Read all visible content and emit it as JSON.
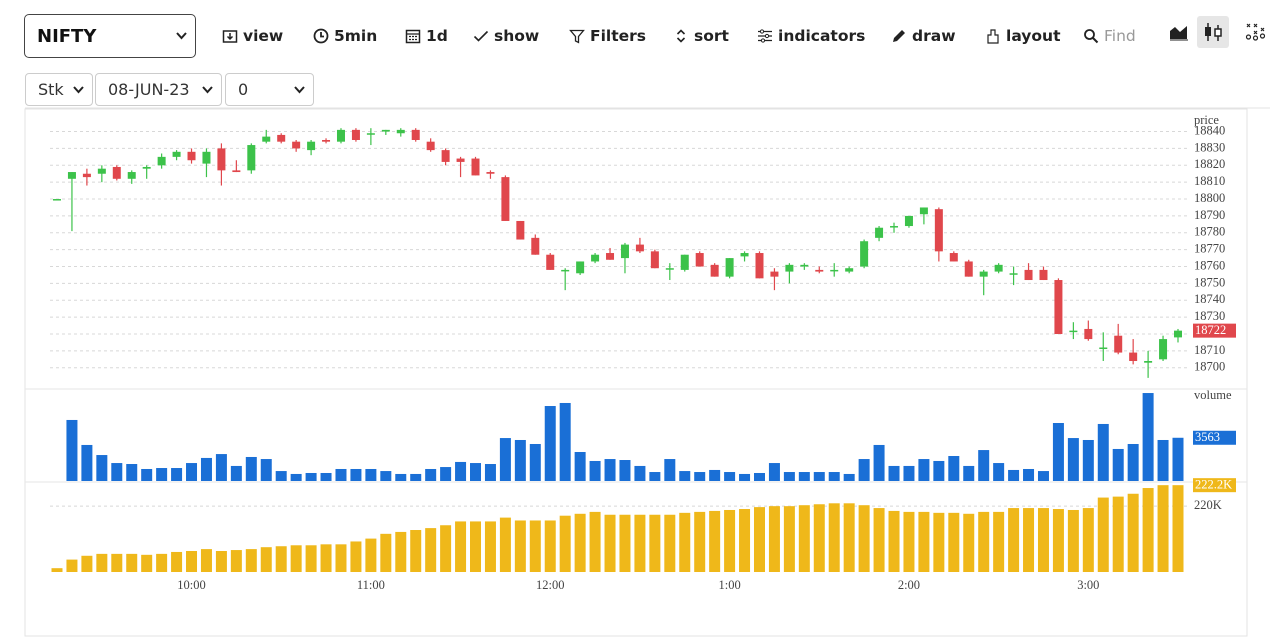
{
  "toolbar": {
    "symbol": "NIFTY",
    "buttons": [
      "view",
      "5min",
      "1d",
      "show",
      "Filters",
      "sort",
      "indicators",
      "draw",
      "layout"
    ],
    "search_placeholder": "Find"
  },
  "selectors": [
    "Stk",
    "08-JUN-23",
    "0"
  ],
  "chart_data": [
    {
      "type": "candlestick",
      "label": "price",
      "up_color": "#3cc24a",
      "down_color": "#e0474c",
      "badge_color": "#e0474c",
      "grid": true,
      "ylim": [
        18688,
        18851
      ],
      "yticks": [
        18700,
        18710,
        18720,
        18730,
        18740,
        18750,
        18760,
        18770,
        18780,
        18790,
        18800,
        18810,
        18820,
        18830,
        18840
      ],
      "open": [
        18800,
        18812,
        18815,
        18815,
        18819,
        18812,
        18818,
        18820,
        18825,
        18828,
        18821,
        18830,
        18817,
        18817,
        18834,
        18838,
        18834,
        18829,
        18835,
        18834,
        18841,
        18839,
        18840,
        18839,
        18841,
        18834,
        18829,
        18824,
        18824,
        18816,
        18813,
        18787,
        18777,
        18767,
        18758,
        18756,
        18763,
        18768,
        18765,
        18773,
        18769,
        18759,
        18758,
        18768,
        18761,
        18754,
        18766,
        18768,
        18757,
        18757,
        18760,
        18758,
        18758,
        18757,
        18760,
        18777,
        18784,
        18784,
        18791,
        18794,
        18768,
        18763,
        18754,
        18757,
        18756,
        18758,
        18758,
        18752,
        18722,
        18723,
        18712,
        18719,
        18709,
        18703,
        18705,
        18718
      ],
      "high": [
        18800,
        18816,
        18818,
        18820,
        18820,
        18817,
        18820,
        18827,
        18829,
        18830,
        18830,
        18833,
        18823,
        18833,
        18841,
        18839,
        18835,
        18835,
        18836,
        18842,
        18842,
        18842,
        18841,
        18842,
        18842,
        18836,
        18830,
        18825,
        18825,
        18817,
        18814,
        18787,
        18779,
        18768,
        18759,
        18763,
        18768,
        18771,
        18774,
        18777,
        18770,
        18762,
        18767,
        18769,
        18762,
        18765,
        18769,
        18769,
        18759,
        18762,
        18762,
        18760,
        18762,
        18760,
        18776,
        18784,
        18786,
        18790,
        18795,
        18795,
        18769,
        18764,
        18758,
        18762,
        18760,
        18762,
        18760,
        18753,
        18727,
        18728,
        18721,
        18726,
        18717,
        18710,
        18719,
        18723
      ],
      "low": [
        18800,
        18781,
        18808,
        18810,
        18811,
        18809,
        18812,
        18818,
        18823,
        18821,
        18813,
        18808,
        18816,
        18815,
        18833,
        18833,
        18828,
        18826,
        18833,
        18833,
        18834,
        18832,
        18838,
        18837,
        18834,
        18828,
        18820,
        18813,
        18814,
        18812,
        18787,
        18776,
        18767,
        18758,
        18746,
        18755,
        18762,
        18764,
        18756,
        18768,
        18759,
        18752,
        18757,
        18760,
        18754,
        18753,
        18763,
        18753,
        18746,
        18750,
        18758,
        18756,
        18754,
        18756,
        18759,
        18775,
        18780,
        18783,
        18785,
        18763,
        18763,
        18754,
        18743,
        18756,
        18749,
        18752,
        18752,
        18720,
        18717,
        18716,
        18704,
        18708,
        18702,
        18694,
        18704,
        18715
      ],
      "close": [
        18800,
        18816,
        18813,
        18818,
        18812,
        18816,
        18819,
        18825,
        18828,
        18823,
        18828,
        18817,
        18816,
        18832,
        18837,
        18834,
        18830,
        18834,
        18834,
        18841,
        18835,
        18839,
        18841,
        18841,
        18835,
        18829,
        18822,
        18822,
        18814,
        18815,
        18787,
        18776,
        18767,
        18758,
        18758,
        18763,
        18767,
        18764,
        18773,
        18769,
        18759,
        18759,
        18767,
        18760,
        18754,
        18765,
        18768,
        18753,
        18754,
        18761,
        18761,
        18757,
        18758,
        18759,
        18775,
        18783,
        18784,
        18790,
        18795,
        18769,
        18763,
        18754,
        18757,
        18761,
        18756,
        18752,
        18752,
        18720,
        18722,
        18717,
        18712,
        18709,
        18704,
        18704,
        18717,
        18722
      ]
    },
    {
      "type": "bar",
      "label": "volume",
      "color": "#1a6fd6",
      "ylim": [
        0,
        7500
      ],
      "values": [
        0,
        5030,
        2970,
        2140,
        1480,
        1400,
        990,
        1070,
        1070,
        1480,
        1900,
        2220,
        1240,
        1980,
        1810,
        820,
        580,
        660,
        660,
        990,
        990,
        990,
        820,
        580,
        580,
        990,
        1150,
        1570,
        1480,
        1400,
        3540,
        3380,
        3050,
        6180,
        6430,
        2390,
        1650,
        1810,
        1730,
        1240,
        740,
        1810,
        820,
        740,
        910,
        740,
        580,
        660,
        1480,
        740,
        740,
        740,
        740,
        580,
        1810,
        2970,
        1240,
        1240,
        1810,
        1650,
        2060,
        1240,
        2550,
        1480,
        910,
        990,
        820,
        4780,
        3540,
        3380,
        4700,
        2640,
        3050,
        7250,
        3380,
        3563
      ]
    },
    {
      "type": "bar",
      "color": "#efb81a",
      "grid": true,
      "ylim": [
        213100,
        222427
      ],
      "yticks": [
        {
          "value": 220000,
          "label": "220K"
        }
      ],
      "values": [
        213500,
        214400,
        214800,
        215000,
        215000,
        215000,
        214900,
        215000,
        215200,
        215300,
        215500,
        215300,
        215400,
        215500,
        215700,
        215800,
        215900,
        215900,
        216000,
        216000,
        216300,
        216600,
        217100,
        217300,
        217500,
        217700,
        218000,
        218400,
        218400,
        218400,
        218800,
        218500,
        218500,
        218500,
        219000,
        219200,
        219400,
        219100,
        219100,
        219100,
        219100,
        219100,
        219300,
        219400,
        219500,
        219600,
        219700,
        219900,
        220000,
        220000,
        220100,
        220200,
        220300,
        220300,
        220100,
        219800,
        219500,
        219400,
        219400,
        219300,
        219300,
        219200,
        219400,
        219400,
        219800,
        219800,
        219800,
        219700,
        219600,
        219800,
        220900,
        221000,
        221300,
        221900,
        222200,
        222200
      ],
      "value_labels": [
        null,
        null,
        null,
        null,
        null,
        null,
        null,
        null,
        null,
        null,
        null,
        null,
        null,
        null,
        null,
        null,
        null,
        null,
        null,
        null,
        null,
        null,
        null,
        null,
        null,
        null,
        null,
        null,
        null,
        null,
        null,
        null,
        null,
        null,
        null,
        null,
        null,
        null,
        null,
        null,
        null,
        null,
        null,
        null,
        null,
        null,
        null,
        null,
        null,
        null,
        null,
        null,
        null,
        null,
        null,
        null,
        null,
        null,
        null,
        null,
        null,
        null,
        null,
        null,
        null,
        null,
        null,
        null,
        null,
        null,
        null,
        null,
        null,
        null,
        null,
        "222.2K"
      ],
      "categories": [
        null,
        null,
        null,
        null,
        null,
        null,
        null,
        null,
        null,
        "10:00",
        null,
        null,
        null,
        null,
        null,
        null,
        null,
        null,
        null,
        null,
        null,
        "11:00",
        null,
        null,
        null,
        null,
        null,
        null,
        null,
        null,
        null,
        null,
        null,
        "12:00",
        null,
        null,
        null,
        null,
        null,
        null,
        null,
        null,
        null,
        null,
        null,
        "1:00",
        null,
        null,
        null,
        null,
        null,
        null,
        null,
        null,
        null,
        null,
        null,
        "2:00",
        null,
        null,
        null,
        null,
        null,
        null,
        null,
        null,
        null,
        null,
        null,
        "3:00",
        null,
        null,
        null,
        null,
        null,
        null
      ]
    }
  ]
}
